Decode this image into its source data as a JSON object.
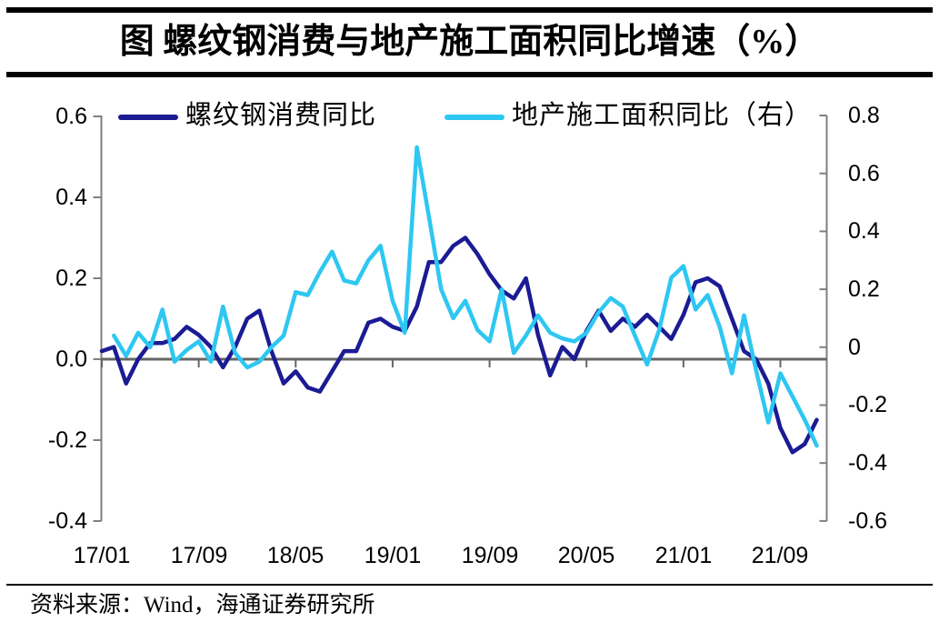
{
  "page": {
    "title": "图  螺纹钢消费与地产施工面积同比增速（%）"
  },
  "footer": {
    "source": "资料来源：Wind，海通证券研究所"
  },
  "chart_data": {
    "type": "line",
    "title": "图 螺纹钢消费与地产施工面积同比增速（%）",
    "grid": "off",
    "legend_position": "top",
    "x": [
      "2017-01",
      "2017-02",
      "2017-03",
      "2017-04",
      "2017-05",
      "2017-06",
      "2017-07",
      "2017-08",
      "2017-09",
      "2017-10",
      "2017-11",
      "2017-12",
      "2018-01",
      "2018-02",
      "2018-03",
      "2018-04",
      "2018-05",
      "2018-06",
      "2018-07",
      "2018-08",
      "2018-09",
      "2018-10",
      "2018-11",
      "2018-12",
      "2019-01",
      "2019-02",
      "2019-03",
      "2019-04",
      "2019-05",
      "2019-06",
      "2019-07",
      "2019-08",
      "2019-09",
      "2019-10",
      "2019-11",
      "2019-12",
      "2020-01",
      "2020-02",
      "2020-03",
      "2020-04",
      "2020-05",
      "2020-06",
      "2020-07",
      "2020-08",
      "2020-09",
      "2020-10",
      "2020-11",
      "2020-12",
      "2021-01",
      "2021-02",
      "2021-03",
      "2021-04",
      "2021-05",
      "2021-06",
      "2021-07",
      "2021-08",
      "2021-09",
      "2021-10",
      "2021-11",
      "2021-12"
    ],
    "x_axis": {
      "tick_labels": [
        "17/01",
        "17/09",
        "18/05",
        "19/01",
        "19/09",
        "20/05",
        "21/01",
        "21/09"
      ],
      "tick_month_index": [
        0,
        8,
        16,
        24,
        32,
        40,
        48,
        56
      ]
    },
    "left_axis": {
      "tick_labels": [
        "0.6",
        "0.4",
        "0.2",
        "0.0",
        "-0.2",
        "-0.4"
      ],
      "tick_values": [
        0.6,
        0.4,
        0.2,
        0.0,
        -0.2,
        -0.4
      ],
      "range": [
        -0.4,
        0.6
      ]
    },
    "right_axis": {
      "tick_labels": [
        "0.8",
        "0.6",
        "0.4",
        "0.2",
        "0",
        "-0.2",
        "-0.4",
        "-0.6"
      ],
      "tick_values": [
        0.8,
        0.6,
        0.4,
        0.2,
        0,
        -0.2,
        -0.4,
        -0.6
      ],
      "range": [
        -0.6,
        0.8
      ]
    },
    "series": [
      {
        "name": "螺纹钢消费同比",
        "axis": "left",
        "color": "#1b1b94",
        "values": [
          0.02,
          0.03,
          -0.06,
          0.0,
          0.04,
          0.04,
          0.05,
          0.08,
          0.06,
          0.03,
          -0.02,
          0.03,
          0.1,
          0.12,
          0.02,
          -0.06,
          -0.03,
          -0.07,
          -0.08,
          -0.03,
          0.02,
          0.02,
          0.09,
          0.1,
          0.08,
          0.07,
          0.13,
          0.24,
          0.24,
          0.28,
          0.3,
          0.26,
          0.21,
          0.17,
          0.15,
          0.2,
          0.06,
          -0.04,
          0.03,
          0.0,
          0.07,
          0.12,
          0.07,
          0.1,
          0.08,
          0.11,
          0.08,
          0.05,
          0.11,
          0.19,
          0.2,
          0.18,
          0.1,
          0.02,
          0.0,
          -0.06,
          -0.17,
          -0.23,
          -0.21,
          -0.15
        ]
      },
      {
        "name": "地产施工面积同比（右）",
        "axis": "right",
        "color": "#2ec7f2",
        "values": [
          null,
          0.04,
          -0.03,
          0.05,
          0.0,
          0.13,
          -0.05,
          -0.01,
          0.02,
          -0.05,
          0.14,
          -0.02,
          -0.07,
          -0.05,
          0.0,
          0.04,
          0.19,
          0.18,
          0.26,
          0.33,
          0.23,
          0.22,
          0.3,
          0.35,
          0.16,
          0.05,
          0.69,
          0.45,
          0.2,
          0.1,
          0.16,
          0.06,
          0.02,
          0.2,
          -0.02,
          0.04,
          0.11,
          0.05,
          0.03,
          0.02,
          0.05,
          0.12,
          0.17,
          0.14,
          0.04,
          -0.06,
          0.06,
          0.24,
          0.28,
          0.13,
          0.18,
          0.07,
          -0.09,
          0.11,
          -0.08,
          -0.26,
          -0.09,
          -0.17,
          -0.25,
          -0.34
        ]
      }
    ],
    "axis_color": "#7f7f7f"
  }
}
